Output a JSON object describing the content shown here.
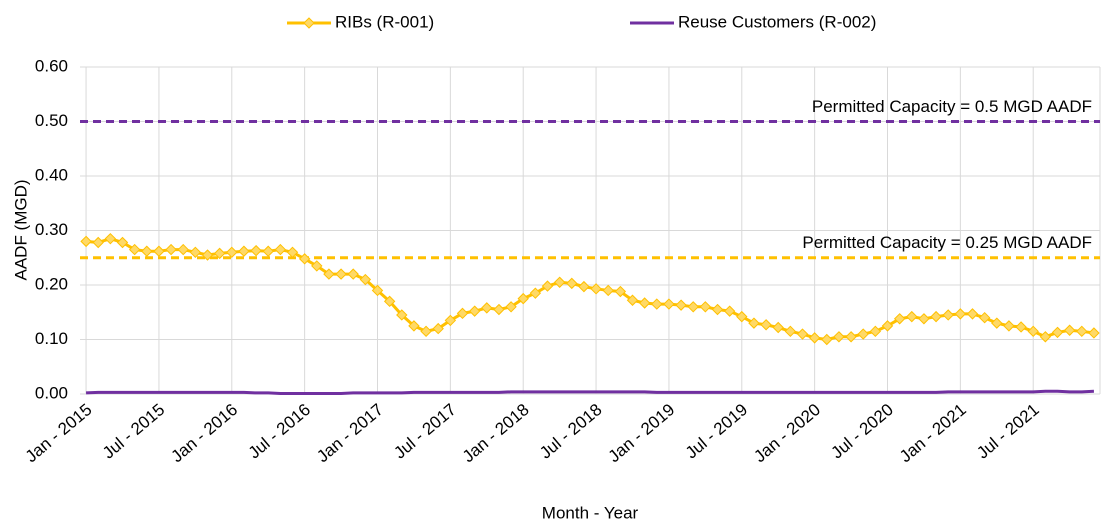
{
  "chart_data": {
    "type": "line",
    "x_label": "Month - Year",
    "y_label": "AADF (MGD)",
    "categories": [
      "Jan - 2015",
      null,
      null,
      null,
      null,
      null,
      "Jul - 2015",
      null,
      null,
      null,
      null,
      null,
      "Jan - 2016",
      null,
      null,
      null,
      null,
      null,
      "Jul - 2016",
      null,
      null,
      null,
      null,
      null,
      "Jan - 2017",
      null,
      null,
      null,
      null,
      null,
      "Jul - 2017",
      null,
      null,
      null,
      null,
      null,
      "Jan - 2018",
      null,
      null,
      null,
      null,
      null,
      "Jul - 2018",
      null,
      null,
      null,
      null,
      null,
      "Jan - 2019",
      null,
      null,
      null,
      null,
      null,
      "Jul - 2019",
      null,
      null,
      null,
      null,
      null,
      "Jan - 2020",
      null,
      null,
      null,
      null,
      null,
      "Jul - 2020",
      null,
      null,
      null,
      null,
      null,
      "Jan - 2021",
      null,
      null,
      null,
      null,
      null,
      "Jul - 2021",
      null,
      null,
      null,
      null,
      null
    ],
    "series": [
      {
        "name": "RIBs (R-001)",
        "color": "#FFC000",
        "marker_color": "#FFD966",
        "marker": true,
        "values": [
          0.28,
          0.278,
          0.285,
          0.278,
          0.265,
          0.262,
          0.262,
          0.265,
          0.265,
          0.26,
          0.255,
          0.258,
          0.26,
          0.262,
          0.263,
          0.262,
          0.265,
          0.26,
          0.248,
          0.235,
          0.22,
          0.22,
          0.22,
          0.21,
          0.19,
          0.17,
          0.145,
          0.125,
          0.115,
          0.12,
          0.135,
          0.148,
          0.152,
          0.158,
          0.155,
          0.16,
          0.175,
          0.185,
          0.198,
          0.205,
          0.203,
          0.197,
          0.193,
          0.19,
          0.188,
          0.172,
          0.167,
          0.165,
          0.165,
          0.163,
          0.16,
          0.16,
          0.155,
          0.152,
          0.142,
          0.13,
          0.127,
          0.122,
          0.115,
          0.11,
          0.103,
          0.1,
          0.105,
          0.105,
          0.11,
          0.115,
          0.125,
          0.138,
          0.142,
          0.138,
          0.142,
          0.145,
          0.147,
          0.147,
          0.14,
          0.13,
          0.125,
          0.123,
          0.115,
          0.105,
          0.113,
          0.117,
          0.115,
          0.112
        ]
      },
      {
        "name": "Reuse Customers (R-002)",
        "color": "#7030A0",
        "marker": false,
        "values": [
          0.002,
          0.003,
          0.003,
          0.003,
          0.003,
          0.003,
          0.003,
          0.003,
          0.003,
          0.003,
          0.003,
          0.003,
          0.003,
          0.003,
          0.002,
          0.002,
          0.001,
          0.001,
          0.001,
          0.001,
          0.001,
          0.001,
          0.002,
          0.002,
          0.002,
          0.002,
          0.002,
          0.003,
          0.003,
          0.003,
          0.003,
          0.003,
          0.003,
          0.003,
          0.003,
          0.004,
          0.004,
          0.004,
          0.004,
          0.004,
          0.004,
          0.004,
          0.004,
          0.004,
          0.004,
          0.004,
          0.004,
          0.003,
          0.003,
          0.003,
          0.003,
          0.003,
          0.003,
          0.003,
          0.003,
          0.003,
          0.003,
          0.003,
          0.003,
          0.003,
          0.003,
          0.003,
          0.003,
          0.003,
          0.003,
          0.003,
          0.003,
          0.003,
          0.003,
          0.003,
          0.003,
          0.004,
          0.004,
          0.004,
          0.004,
          0.004,
          0.004,
          0.004,
          0.004,
          0.005,
          0.005,
          0.004,
          0.004,
          0.005
        ]
      }
    ],
    "reference_lines": [
      {
        "value": 0.5,
        "label": "Permitted Capacity = 0.5 MGD AADF",
        "color": "#7030A0"
      },
      {
        "value": 0.25,
        "label": "Permitted Capacity = 0.25 MGD AADF",
        "color": "#FFC000"
      }
    ],
    "ylim": [
      0,
      0.6
    ],
    "yticks": [
      {
        "value": 0,
        "label": "0.00"
      },
      {
        "value": 0.1,
        "label": "0.10"
      },
      {
        "value": 0.2,
        "label": "0.20"
      },
      {
        "value": 0.3,
        "label": "0.30"
      },
      {
        "value": 0.4,
        "label": "0.40"
      },
      {
        "value": 0.5,
        "label": "0.50"
      },
      {
        "value": 0.6,
        "label": "0.60"
      }
    ],
    "grid": true,
    "legend": "top"
  }
}
